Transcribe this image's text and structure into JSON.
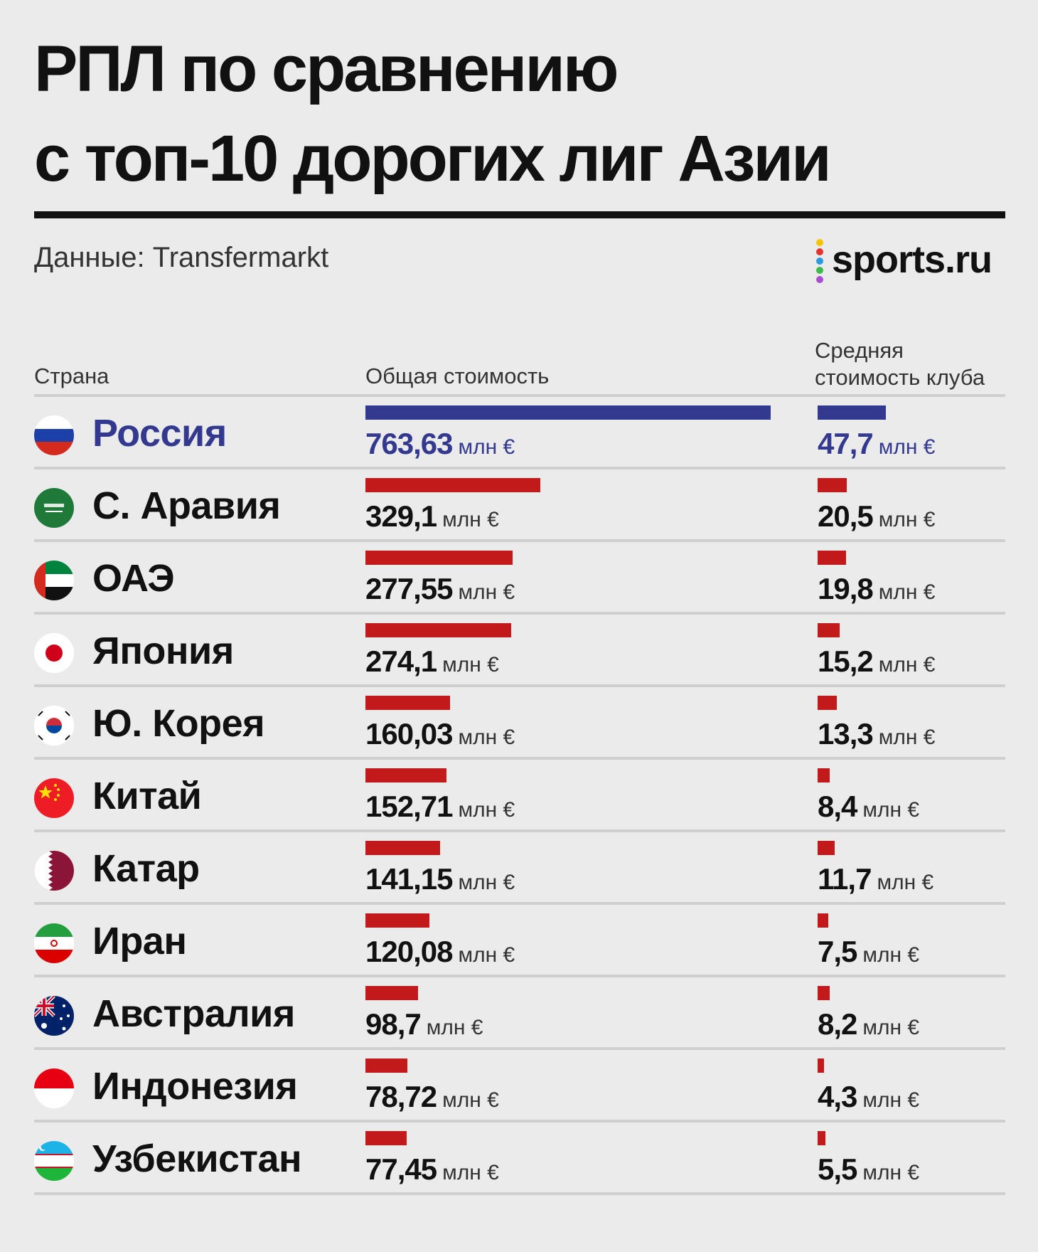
{
  "title": {
    "line1": "РПЛ по сравнению",
    "line2": "с топ-10 дорогих лиг Азии"
  },
  "source": "Данные: Transfermarkt",
  "logo": {
    "text": "sports.ru",
    "dot_colors": [
      "#f5c400",
      "#e3342f",
      "#2b9ae3",
      "#3dbb4f",
      "#a84fd0"
    ]
  },
  "headers": {
    "country": "Страна",
    "total": "Общая стоимость",
    "avg_line1": "Средняя",
    "avg_line2": "стоимость клуба"
  },
  "colors": {
    "highlight": "#32398e",
    "bar": "#c21a1a"
  },
  "chart_data": {
    "type": "bar",
    "unit": "млн €",
    "categories": [
      "Россия",
      "С. Аравия",
      "ОАЭ",
      "Япония",
      "Ю. Корея",
      "Китай",
      "Катар",
      "Иран",
      "Австралия",
      "Индонезия",
      "Узбекистан"
    ],
    "series": [
      {
        "name": "Общая стоимость",
        "values": [
          763.63,
          329.1,
          277.55,
          274.1,
          160.03,
          152.71,
          141.15,
          120.08,
          98.7,
          78.72,
          77.45
        ],
        "labels": [
          "763,63",
          "329,1",
          "277,55",
          "274,1",
          "160,03",
          "152,71",
          "141,15",
          "120,08",
          "98,7",
          "78,72",
          "77,45"
        ]
      },
      {
        "name": "Средняя стоимость клуба",
        "values": [
          47.7,
          20.5,
          19.8,
          15.2,
          13.3,
          8.4,
          11.7,
          7.5,
          8.2,
          4.3,
          5.5
        ],
        "labels": [
          "47,7",
          "20,5",
          "19,8",
          "15,2",
          "13,3",
          "8,4",
          "11,7",
          "7,5",
          "8,2",
          "4,3",
          "5,5"
        ]
      }
    ],
    "highlight_category": "Россия",
    "flags": [
      "russia-flag",
      "saudi-arabia-flag",
      "uae-flag",
      "japan-flag",
      "south-korea-flag",
      "china-flag",
      "qatar-flag",
      "iran-flag",
      "australia-flag",
      "indonesia-flag",
      "uzbekistan-flag"
    ]
  }
}
